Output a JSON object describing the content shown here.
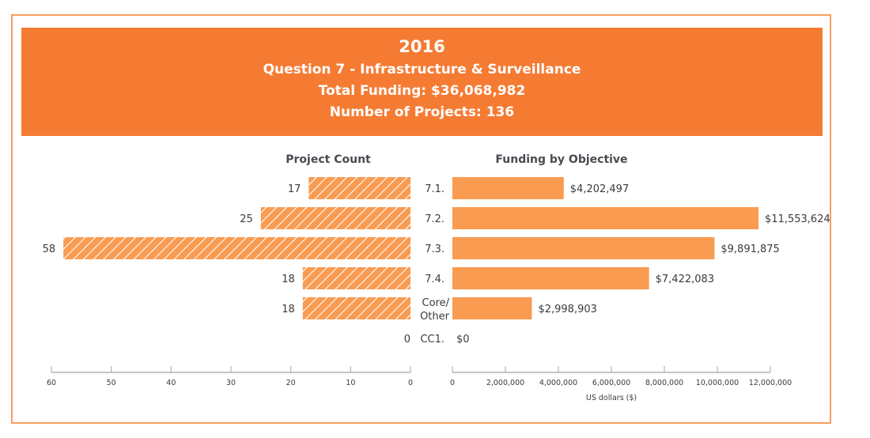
{
  "header": {
    "year": "2016",
    "question": "Question 7 - Infrastructure & Surveillance",
    "total_funding": "Total Funding: $36,068,982",
    "project_count": "Number of Projects: 136"
  },
  "colors": {
    "banner": "#f57b33",
    "bar": "#f99b51",
    "frame": "#f89e60",
    "axis": "#b3b3b3",
    "text": "#3a3a40"
  },
  "chart_data": [
    {
      "type": "bar",
      "orientation": "horizontal",
      "direction": "right-to-left",
      "title": "Project Count",
      "pattern": "diagonal-hatch",
      "categories": [
        "7.1.",
        "7.2.",
        "7.3.",
        "7.4.",
        "Core/ Other",
        "CC1."
      ],
      "values": [
        17,
        25,
        58,
        18,
        18,
        0
      ],
      "value_labels": [
        "17",
        "25",
        "58",
        "18",
        "18",
        "0"
      ],
      "xlim": [
        0,
        60
      ],
      "ticks": [
        60,
        50,
        40,
        30,
        20,
        10,
        0
      ],
      "tick_labels": [
        "60",
        "50",
        "40",
        "30",
        "20",
        "10",
        "0"
      ],
      "xlabel": "",
      "grid": false
    },
    {
      "type": "bar",
      "orientation": "horizontal",
      "direction": "left-to-right",
      "title": "Funding by Objective",
      "pattern": "solid",
      "categories": [
        "7.1.",
        "7.2.",
        "7.3.",
        "7.4.",
        "Core/ Other",
        "CC1."
      ],
      "values": [
        4202497,
        11553624,
        9891875,
        7422083,
        2998903,
        0
      ],
      "value_labels": [
        "$4,202,497",
        "$11,553,624",
        "$9,891,875",
        "$7,422,083",
        "$2,998,903",
        "$0"
      ],
      "xlim": [
        0,
        12000000
      ],
      "ticks": [
        0,
        2000000,
        4000000,
        6000000,
        8000000,
        10000000,
        12000000
      ],
      "tick_labels": [
        "0",
        "2,000,000",
        "4,000,000",
        "6,000,000",
        "8,000,000",
        "10,000,000",
        "12,000,000"
      ],
      "xlabel": "US dollars ($)",
      "grid": false
    }
  ]
}
